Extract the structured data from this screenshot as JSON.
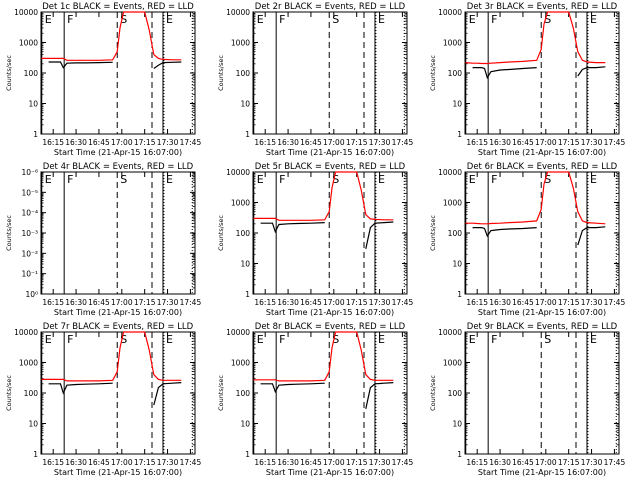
{
  "figure": {
    "xlabel": "Start Time (21-Apr-15 16:07:00)",
    "ylabel": "Counts/sec",
    "x_ticks": [
      "16:15",
      "16:30",
      "16:45",
      "17:00",
      "17:15",
      "17:30",
      "17:45"
    ],
    "x_tick_values": [
      16.25,
      16.5,
      16.75,
      17.0,
      17.25,
      17.5,
      17.75
    ],
    "x_range": [
      16.1167,
      17.8
    ],
    "colors": {
      "events": "#000000",
      "lld": "#ff0000"
    },
    "markers": [
      {
        "label": "E",
        "x": 16.125,
        "style": "solid"
      },
      {
        "label": "F",
        "x": 16.37,
        "style": "solid"
      },
      {
        "label": "S",
        "x": 16.95,
        "style": "dashed"
      },
      {
        "label": "E",
        "x": 17.45,
        "style": "solid"
      }
    ],
    "extra_lines": [
      {
        "x": 17.33,
        "style": "dashed"
      },
      {
        "x": 17.46,
        "style": "dotted"
      },
      {
        "x": 17.77,
        "style": "dotted"
      }
    ]
  },
  "chart_data": [
    {
      "type": "line",
      "title": "Det 1c BLACK = Events, RED = LLD",
      "scale": "log",
      "y_ticks": [
        "1",
        "10",
        "100",
        "1000",
        "10000"
      ],
      "ylim": [
        1,
        10000
      ],
      "x": [
        16.12,
        16.2,
        16.25,
        16.3,
        16.33,
        16.36,
        16.4,
        16.5,
        16.6,
        16.75,
        16.9,
        16.95,
        16.98,
        17.02,
        17.1,
        17.2,
        17.25,
        17.3,
        17.35,
        17.4,
        17.45,
        17.55,
        17.65
      ],
      "series": [
        {
          "name": "Events",
          "values": [
            null,
            230,
            230,
            230,
            230,
            150,
            210,
            215,
            215,
            220,
            225,
            null,
            null,
            null,
            null,
            null,
            null,
            null,
            140,
            180,
            220,
            225,
            230
          ]
        },
        {
          "name": "LLD",
          "values": [
            300,
            300,
            300,
            300,
            300,
            300,
            260,
            260,
            260,
            260,
            270,
            500,
            3000,
            10000,
            10000,
            10000,
            10000,
            2500,
            400,
            300,
            280,
            270,
            270
          ]
        }
      ]
    },
    {
      "type": "line",
      "title": "Det 2r BLACK = Events, RED = LLD",
      "scale": "log",
      "y_ticks": [
        "1",
        "10",
        "100",
        "1000",
        "10000"
      ],
      "ylim": [
        1,
        10000
      ],
      "x": [],
      "series": []
    },
    {
      "type": "line",
      "title": "Det 3r BLACK = Events, RED = LLD",
      "scale": "log",
      "y_ticks": [
        "1",
        "10",
        "100",
        "1000",
        "10000"
      ],
      "ylim": [
        1,
        10000
      ],
      "x": [
        16.12,
        16.2,
        16.25,
        16.3,
        16.33,
        16.36,
        16.4,
        16.5,
        16.6,
        16.75,
        16.9,
        16.95,
        16.98,
        17.02,
        17.1,
        17.2,
        17.25,
        17.3,
        17.35,
        17.4,
        17.45,
        17.55,
        17.65
      ],
      "series": [
        {
          "name": "Events",
          "values": [
            null,
            150,
            150,
            150,
            140,
            70,
            110,
            125,
            130,
            140,
            150,
            null,
            null,
            null,
            null,
            null,
            null,
            null,
            80,
            130,
            150,
            150,
            160
          ]
        },
        {
          "name": "LLD",
          "values": [
            220,
            210,
            210,
            205,
            205,
            205,
            210,
            220,
            230,
            240,
            260,
            600,
            4000,
            10000,
            10000,
            10000,
            10000,
            3000,
            500,
            260,
            230,
            220,
            220
          ]
        }
      ]
    },
    {
      "type": "line",
      "title": "Det 4r BLACK = Events, RED = LLD",
      "scale": "log",
      "y_ticks": [
        "10⁰",
        "10⁻¹",
        "10⁻²",
        "10⁻³",
        "10⁻⁴",
        "10⁻⁵",
        "10⁻⁶"
      ],
      "ylim": [
        1,
        1e-06
      ],
      "x": [],
      "series": []
    },
    {
      "type": "line",
      "title": "Det 5r BLACK = Events, RED = LLD",
      "scale": "log",
      "y_ticks": [
        "1",
        "10",
        "100",
        "1000",
        "10000"
      ],
      "ylim": [
        1,
        10000
      ],
      "x": [
        16.12,
        16.2,
        16.25,
        16.3,
        16.33,
        16.36,
        16.4,
        16.5,
        16.6,
        16.75,
        16.9,
        16.95,
        16.98,
        17.02,
        17.1,
        17.2,
        17.25,
        17.3,
        17.35,
        17.4,
        17.45,
        17.55,
        17.65
      ],
      "series": [
        {
          "name": "Events",
          "values": [
            null,
            210,
            210,
            210,
            210,
            110,
            190,
            200,
            205,
            210,
            220,
            null,
            null,
            null,
            null,
            null,
            null,
            null,
            30,
            150,
            210,
            220,
            230
          ]
        },
        {
          "name": "LLD",
          "values": [
            300,
            300,
            300,
            300,
            300,
            300,
            260,
            260,
            260,
            260,
            270,
            500,
            3000,
            10000,
            10000,
            10000,
            10000,
            2500,
            400,
            290,
            280,
            270,
            270
          ]
        }
      ]
    },
    {
      "type": "line",
      "title": "Det 6r BLACK = Events, RED = LLD",
      "scale": "log",
      "y_ticks": [
        "1",
        "10",
        "100",
        "1000",
        "10000"
      ],
      "ylim": [
        1,
        10000
      ],
      "x": [
        16.12,
        16.2,
        16.25,
        16.3,
        16.33,
        16.36,
        16.4,
        16.5,
        16.6,
        16.75,
        16.9,
        16.95,
        16.98,
        17.02,
        17.1,
        17.2,
        17.25,
        17.3,
        17.35,
        17.4,
        17.45,
        17.55,
        17.65
      ],
      "series": [
        {
          "name": "Events",
          "values": [
            null,
            150,
            150,
            150,
            140,
            80,
            120,
            130,
            135,
            140,
            150,
            null,
            null,
            null,
            null,
            null,
            null,
            null,
            40,
            120,
            150,
            150,
            160
          ]
        },
        {
          "name": "LLD",
          "values": [
            210,
            210,
            205,
            200,
            200,
            200,
            205,
            210,
            220,
            230,
            250,
            600,
            4000,
            10000,
            10000,
            10000,
            10000,
            3000,
            500,
            250,
            220,
            210,
            200
          ]
        }
      ]
    },
    {
      "type": "line",
      "title": "Det 7r BLACK = Events, RED = LLD",
      "scale": "log",
      "y_ticks": [
        "1",
        "10",
        "100",
        "1000",
        "10000"
      ],
      "ylim": [
        1,
        10000
      ],
      "x": [
        16.12,
        16.2,
        16.25,
        16.3,
        16.33,
        16.36,
        16.4,
        16.5,
        16.6,
        16.75,
        16.9,
        16.95,
        16.98,
        17.02,
        17.1,
        17.2,
        17.25,
        17.3,
        17.35,
        17.4,
        17.45,
        17.55,
        17.65
      ],
      "series": [
        {
          "name": "Events",
          "values": [
            null,
            200,
            200,
            200,
            200,
            100,
            180,
            190,
            195,
            200,
            210,
            null,
            null,
            null,
            null,
            null,
            null,
            null,
            40,
            150,
            200,
            210,
            220
          ]
        },
        {
          "name": "LLD",
          "values": [
            280,
            280,
            280,
            280,
            280,
            280,
            250,
            250,
            250,
            250,
            260,
            500,
            3000,
            10000,
            10000,
            10000,
            10000,
            2500,
            400,
            280,
            260,
            260,
            260
          ]
        }
      ]
    },
    {
      "type": "line",
      "title": "Det 8r BLACK = Events, RED = LLD",
      "scale": "log",
      "y_ticks": [
        "1",
        "10",
        "100",
        "1000",
        "10000"
      ],
      "ylim": [
        1,
        10000
      ],
      "x": [
        16.12,
        16.2,
        16.25,
        16.3,
        16.33,
        16.36,
        16.4,
        16.5,
        16.6,
        16.75,
        16.9,
        16.95,
        16.98,
        17.02,
        17.1,
        17.2,
        17.25,
        17.3,
        17.35,
        17.4,
        17.45,
        17.55,
        17.65
      ],
      "series": [
        {
          "name": "Events",
          "values": [
            null,
            200,
            200,
            200,
            200,
            110,
            180,
            190,
            195,
            200,
            210,
            null,
            null,
            null,
            null,
            null,
            null,
            null,
            30,
            150,
            200,
            210,
            220
          ]
        },
        {
          "name": "LLD",
          "values": [
            270,
            270,
            270,
            270,
            270,
            270,
            250,
            250,
            250,
            250,
            260,
            500,
            3000,
            10000,
            10000,
            10000,
            10000,
            2500,
            400,
            280,
            260,
            260,
            260
          ]
        }
      ]
    },
    {
      "type": "line",
      "title": "Det 9r BLACK = Events, RED = LLD",
      "scale": "log",
      "y_ticks": [
        "1",
        "10",
        "100",
        "1000",
        "10000"
      ],
      "ylim": [
        1,
        10000
      ],
      "x": [],
      "series": []
    }
  ]
}
